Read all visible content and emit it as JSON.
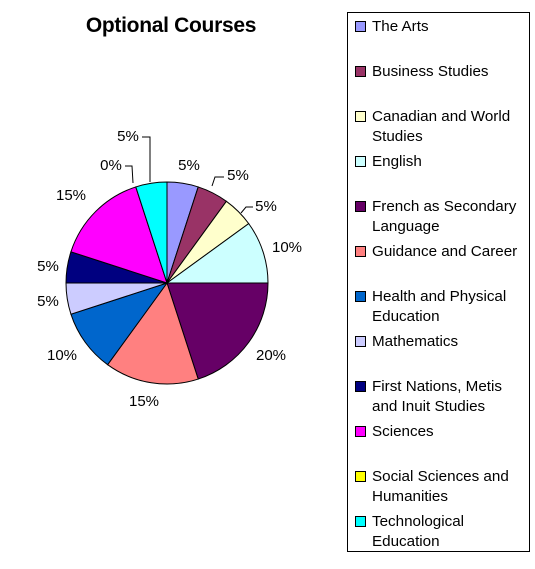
{
  "chart_data": {
    "type": "pie",
    "title": "Optional Courses",
    "legend_position": "right",
    "slices": [
      {
        "label": "The Arts",
        "value": 5,
        "display": "5%",
        "color": "#9999ff"
      },
      {
        "label": "Business Studies",
        "value": 5,
        "display": "5%",
        "color": "#993366"
      },
      {
        "label": "Canadian and World Studies",
        "value": 5,
        "display": "5%",
        "color": "#ffffcc"
      },
      {
        "label": "English",
        "value": 10,
        "display": "10%",
        "color": "#ccffff"
      },
      {
        "label": "French as Secondary Language",
        "value": 20,
        "display": "20%",
        "color": "#660066"
      },
      {
        "label": "Guidance and Career",
        "value": 15,
        "display": "15%",
        "color": "#ff8080"
      },
      {
        "label": "Health and Physical Education",
        "value": 10,
        "display": "10%",
        "color": "#0066cc"
      },
      {
        "label": "Mathematics",
        "value": 5,
        "display": "5%",
        "color": "#ccccff"
      },
      {
        "label": "First Nations, Metis and Inuit Studies",
        "value": 5,
        "display": "5%",
        "color": "#000080"
      },
      {
        "label": "Sciences",
        "value": 15,
        "display": "15%",
        "color": "#ff00ff"
      },
      {
        "label": "Social Sciences and Humanities",
        "value": 0,
        "display": "0%",
        "color": "#ffff00"
      },
      {
        "label": "Technological Education",
        "value": 5,
        "display": "5%",
        "color": "#00ffff"
      }
    ]
  }
}
